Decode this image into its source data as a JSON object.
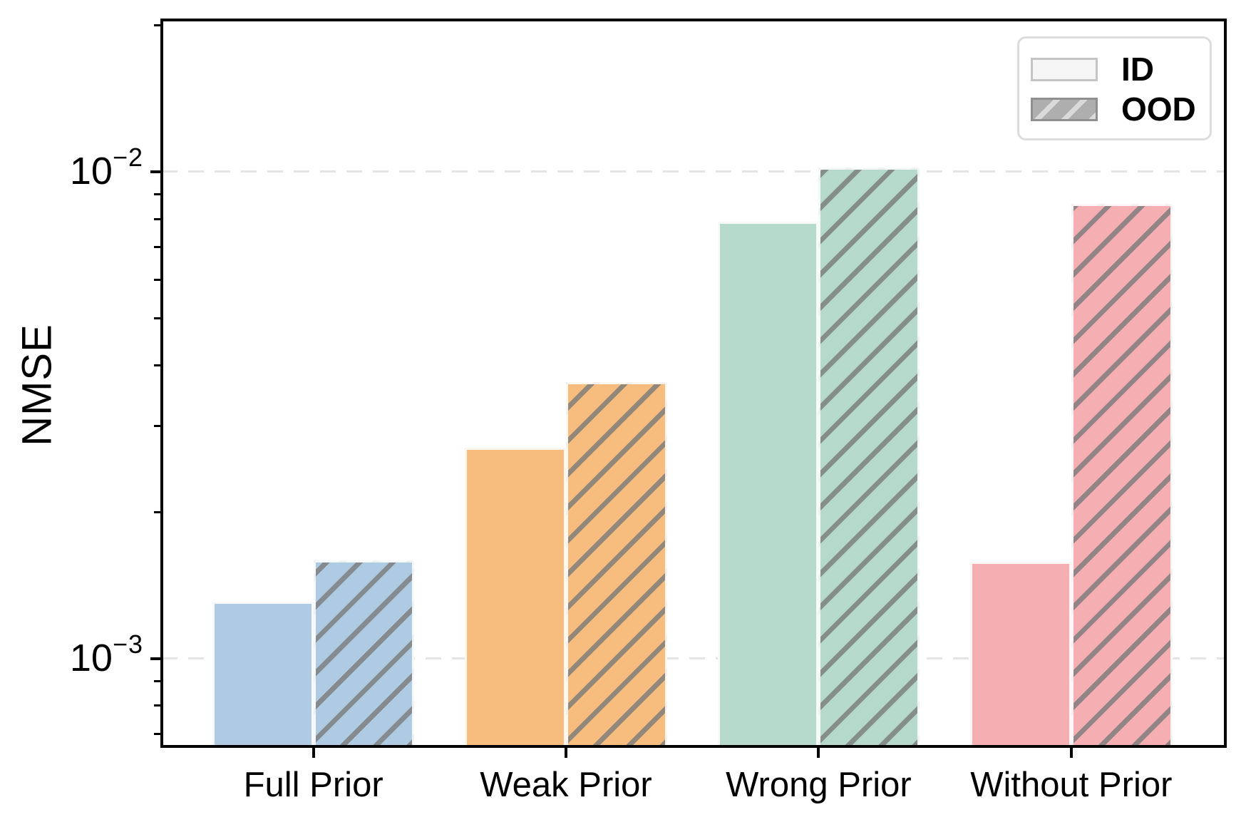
{
  "figure": {
    "ylabel": "NMSE",
    "y_axis": {
      "scale": "log",
      "major_ticks": [
        {
          "value": 0.01,
          "base": "10",
          "exponent": "−2"
        },
        {
          "value": 0.001,
          "base": "10",
          "exponent": "−3"
        }
      ]
    },
    "legend": {
      "items": [
        {
          "label": "ID",
          "style": "solid"
        },
        {
          "label": "OOD",
          "style": "hatched"
        }
      ]
    }
  },
  "chart_data": {
    "type": "bar",
    "categories": [
      "Full Prior",
      "Weak Prior",
      "Wrong Prior",
      "Without Prior"
    ],
    "series": [
      {
        "name": "ID",
        "values": [
          0.00131,
          0.00271,
          0.0079,
          0.00158
        ]
      },
      {
        "name": "OOD",
        "values": [
          0.00159,
          0.0037,
          0.0102,
          0.0086
        ]
      }
    ],
    "title": "",
    "xlabel": "",
    "ylabel": "NMSE",
    "yscale": "log",
    "ylim": [
      0.00066,
      0.0205
    ],
    "ytick_labels": [
      "10⁻²",
      "10⁻³"
    ],
    "grid": "horizontal dashed lines at decade ticks",
    "legend_position": "upper right",
    "bar_colors": [
      "#aecbe3",
      "#f7bd7f",
      "#b5dacc",
      "#f5afb3"
    ],
    "hatch_color": "#7a7a7a",
    "ood_hatch_pattern": "//"
  }
}
